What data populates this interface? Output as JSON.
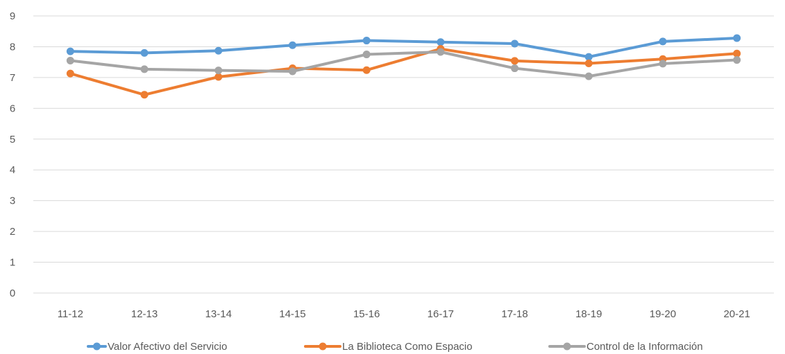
{
  "chart_data": {
    "type": "line",
    "title": "",
    "xlabel": "",
    "ylabel": "",
    "categories": [
      "11-12",
      "12-13",
      "13-14",
      "14-15",
      "15-16",
      "16-17",
      "17-18",
      "18-19",
      "19-20",
      "20-21"
    ],
    "y_ticks": [
      "0",
      "1",
      "2",
      "3",
      "4",
      "5",
      "6",
      "7",
      "8",
      "9"
    ],
    "ylim": [
      0,
      9
    ],
    "grid": true,
    "legend_position": "bottom",
    "series": [
      {
        "name": "Valor Afectivo del Servicio",
        "color": "#5b9bd5",
        "values": [
          7.85,
          7.8,
          7.87,
          8.05,
          8.2,
          8.15,
          8.1,
          7.67,
          8.17,
          8.28
        ]
      },
      {
        "name": "La Biblioteca Como Espacio",
        "color": "#ed7d31",
        "values": [
          7.13,
          6.44,
          7.02,
          7.3,
          7.24,
          7.93,
          7.54,
          7.46,
          7.6,
          7.78
        ]
      },
      {
        "name": "Control de la Información",
        "color": "#a5a5a5",
        "values": [
          7.55,
          7.27,
          7.23,
          7.2,
          7.75,
          7.83,
          7.3,
          7.04,
          7.45,
          7.57
        ]
      }
    ]
  }
}
